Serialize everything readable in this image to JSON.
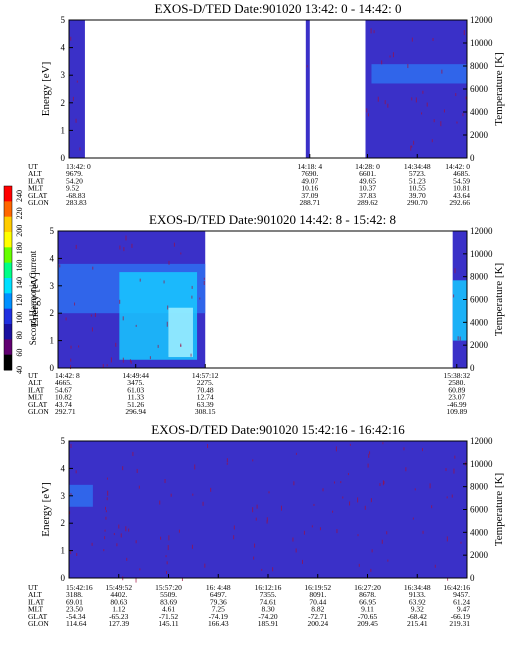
{
  "colors": {
    "background": "#ffffff",
    "plot_base": "#3a30c8",
    "plot_deep": "#1a10a0",
    "band_light": "#2f6ff0",
    "band_cyan": "#18c8ff",
    "band_bright": "#a0f0ff",
    "speckle": "#a01040"
  },
  "colorbar": {
    "title": "Second Harmonic Current",
    "ticks": [
      "240",
      "220",
      "200",
      "180",
      "160",
      "140",
      "120",
      "100",
      "80",
      "60",
      "40"
    ],
    "colors": [
      "#ff0000",
      "#ff6600",
      "#ffcc00",
      "#ffff00",
      "#66ff00",
      "#00ff88",
      "#00e0ff",
      "#0090ff",
      "#2030e0",
      "#1a10a0",
      "#600070",
      "#000000"
    ]
  },
  "row_labels": [
    "UT",
    "ALT",
    "ILAT",
    "MLT",
    "GLAT",
    "GLON"
  ],
  "chart_data": [
    {
      "type": "heatmap",
      "title": "EXOS-D/TED   Date:901020  13:42: 0 - 14:42: 0",
      "ylabel": "Energy [eV]",
      "y2label": "Temperature [K]",
      "ylim": [
        0,
        5
      ],
      "y2lim": [
        0,
        12000
      ],
      "yticks": [
        "0",
        "1",
        "2",
        "3",
        "4",
        "5"
      ],
      "y2ticks": [
        "0",
        "2000",
        "4000",
        "6000",
        "8000",
        "10000",
        "12000"
      ],
      "data_segments": [
        [
          0,
          0.04
        ],
        [
          0.595,
          0.605
        ],
        [
          0.745,
          1.0
        ]
      ],
      "bands": [
        {
          "x": [
            0.76,
            1.0
          ],
          "y": [
            2.7,
            3.4
          ],
          "color": "band_light"
        }
      ],
      "columns": [
        {
          "pos": 0.0,
          "ut": "13:42: 0",
          "alt": "9679.",
          "ilat": "54.20",
          "mlt": "9.52",
          "glat": "-68.83",
          "glon": "283.83"
        },
        {
          "pos": 0.605,
          "ut": "14:18: 4",
          "alt": "7690.",
          "ilat": "49.07",
          "mlt": "10.16",
          "glat": "37.09",
          "glon": "288.71"
        },
        {
          "pos": 0.75,
          "ut": "14:28: 0",
          "alt": "6601.",
          "ilat": "49.65",
          "mlt": "10.37",
          "glat": "37.83",
          "glon": "289.62"
        },
        {
          "pos": 0.875,
          "ut": "14:34:48",
          "alt": "5723.",
          "ilat": "51.23",
          "mlt": "10.55",
          "glat": "39.70",
          "glon": "290.70"
        },
        {
          "pos": 1.0,
          "ut": "14:42: 0",
          "alt": "4685.",
          "ilat": "54.59",
          "mlt": "10.81",
          "glat": "43.64",
          "glon": "292.66"
        }
      ]
    },
    {
      "type": "heatmap",
      "title": "EXOS-D/TED   Date:901020  14:42: 8 - 15:42: 8",
      "ylabel": "Energy [eV]",
      "y2label": "Temperature [K]",
      "ylim": [
        0,
        5
      ],
      "y2lim": [
        0,
        12000
      ],
      "yticks": [
        "0",
        "1",
        "2",
        "3",
        "4",
        "5"
      ],
      "y2ticks": [
        "0",
        "2000",
        "4000",
        "6000",
        "8000",
        "10000",
        "12000"
      ],
      "data_segments": [
        [
          0,
          0.36
        ],
        [
          0.965,
          1.0
        ]
      ],
      "bands": [
        {
          "x": [
            0.0,
            0.36
          ],
          "y": [
            2.0,
            3.8
          ],
          "color": "band_light"
        },
        {
          "x": [
            0.15,
            0.34
          ],
          "y": [
            0.3,
            3.5
          ],
          "color": "band_cyan"
        },
        {
          "x": [
            0.27,
            0.33
          ],
          "y": [
            0.4,
            2.2
          ],
          "color": "band_bright"
        },
        {
          "x": [
            0.965,
            1.0
          ],
          "y": [
            1.0,
            3.2
          ],
          "color": "band_cyan"
        }
      ],
      "columns": [
        {
          "pos": 0.0,
          "ut": "14:42: 8",
          "alt": "4665.",
          "ilat": "54.67",
          "mlt": "10.82",
          "glat": "43.74",
          "glon": "292.71"
        },
        {
          "pos": 0.19,
          "ut": "14:49:44",
          "alt": "3475.",
          "ilat": "61.03",
          "mlt": "11.33",
          "glat": "51.26",
          "glon": "296.94"
        },
        {
          "pos": 0.36,
          "ut": "14:57:12",
          "alt": "2275.",
          "ilat": "70.48",
          "mlt": "12.74",
          "glat": "63.39",
          "glon": "308.15"
        },
        {
          "pos": 0.975,
          "ut": "15:38:32",
          "alt": "2580.",
          "ilat": "60.89",
          "mlt": "23.07",
          "glat": "-46.99",
          "glon": "109.89"
        }
      ]
    },
    {
      "type": "heatmap",
      "title": "EXOS-D/TED   Date:901020  15:42:16 - 16:42:16",
      "ylabel": "Energy [eV]",
      "y2label": "Temperature [K]",
      "ylim": [
        0,
        5
      ],
      "y2lim": [
        0,
        12000
      ],
      "yticks": [
        "0",
        "1",
        "2",
        "3",
        "4",
        "5"
      ],
      "y2ticks": [
        "0",
        "2000",
        "4000",
        "6000",
        "8000",
        "10000",
        "12000"
      ],
      "data_segments": [
        [
          0,
          1.0
        ]
      ],
      "bands": [
        {
          "x": [
            0.0,
            0.06
          ],
          "y": [
            2.6,
            3.4
          ],
          "color": "band_light"
        }
      ],
      "columns": [
        {
          "pos": 0.0,
          "ut": "15:42:16",
          "alt": "3188.",
          "ilat": "69.01",
          "mlt": "23.50",
          "glat": "-54.34",
          "glon": "114.64"
        },
        {
          "pos": 0.125,
          "ut": "15:49:52",
          "alt": "4402.",
          "ilat": "80.63",
          "mlt": "1.12",
          "glat": "-65.23",
          "glon": "127.39"
        },
        {
          "pos": 0.25,
          "ut": "15:57:20",
          "alt": "5509.",
          "ilat": "83.69",
          "mlt": "4.61",
          "glat": "-71.52",
          "glon": "145.11"
        },
        {
          "pos": 0.375,
          "ut": "16: 4:48",
          "alt": "6497.",
          "ilat": "79.36",
          "mlt": "7.25",
          "glat": "-74.19",
          "glon": "166.43"
        },
        {
          "pos": 0.5,
          "ut": "16:12:16",
          "alt": "7355.",
          "ilat": "74.61",
          "mlt": "8.30",
          "glat": "-74.20",
          "glon": "185.91"
        },
        {
          "pos": 0.625,
          "ut": "16:19:52",
          "alt": "8091.",
          "ilat": "70.44",
          "mlt": "8.82",
          "glat": "-72.71",
          "glon": "200.24"
        },
        {
          "pos": 0.75,
          "ut": "16:27:20",
          "alt": "8678.",
          "ilat": "66.95",
          "mlt": "9.11",
          "glat": "-70.65",
          "glon": "209.45"
        },
        {
          "pos": 0.875,
          "ut": "16:34:48",
          "alt": "9133.",
          "ilat": "63.92",
          "mlt": "9.32",
          "glat": "-68.42",
          "glon": "215.41"
        },
        {
          "pos": 1.0,
          "ut": "16:42:16",
          "alt": "9457.",
          "ilat": "61.24",
          "mlt": "9.47",
          "glat": "-66.19",
          "glon": "219.31"
        }
      ]
    }
  ]
}
